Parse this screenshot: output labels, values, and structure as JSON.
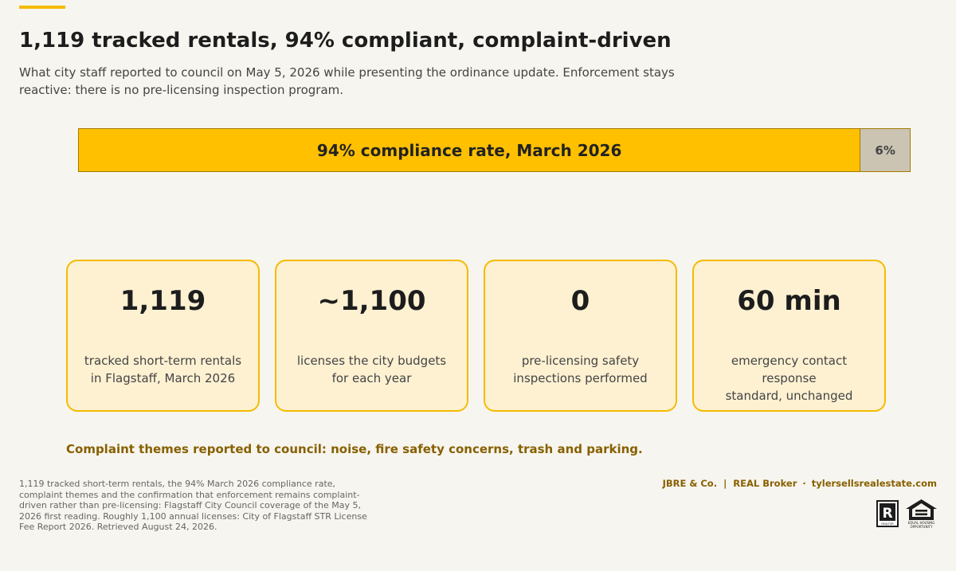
{
  "header": {
    "title": "1,119 tracked rentals, 94% compliant, complaint-driven",
    "subtitle": "What city staff reported to council on May 5, 2026 while presenting the ordinance update. Enforcement stays reactive: there is no pre-licensing inspection program."
  },
  "compliance_bar": {
    "label": "94% compliance rate, March 2026",
    "remainder_label": "6%",
    "compliant_percent": 94
  },
  "cards": [
    {
      "value": "1,119",
      "desc_line1": "tracked short-term rentals",
      "desc_line2": "in Flagstaff, March 2026"
    },
    {
      "value": "~1,100",
      "desc_line1": "licenses the city budgets",
      "desc_line2": "for each year"
    },
    {
      "value": "0",
      "desc_line1": "pre-licensing safety",
      "desc_line2": "inspections performed"
    },
    {
      "value": "60 min",
      "desc_line1": "emergency contact response",
      "desc_line2": "standard, unchanged"
    }
  ],
  "themes": "Complaint themes reported to council: noise, fire safety concerns, trash and parking.",
  "source": "1,119 tracked short-term rentals, the 94% March 2026 compliance rate, complaint themes and the confirmation that enforcement remains complaint-driven rather than pre-licensing: Flagstaff City Council coverage of the May 5, 2026 first reading. Roughly 1,100 annual licenses: City of Flagstaff STR License Fee Report 2026. Retrieved August 24, 2026.",
  "footer": {
    "brand": "JBRE & Co.  |  REAL Broker",
    "separator": "·",
    "website": "tylersellsrealestate.com",
    "realtor_logo_text": "REALTOR",
    "eho_logo_text_line1": "EQUAL HOUSING",
    "eho_logo_text_line2": "OPPORTUNITY"
  },
  "colors": {
    "accent": "#f5bb00",
    "bar_fill": "#ffc000",
    "bar_rest": "#cbc4b3",
    "card_bg": "#fdf1d2",
    "brand_text": "#876000",
    "background": "#f7f5ef"
  },
  "icons": [
    "realtor-logo-icon",
    "equal-housing-opportunity-icon"
  ]
}
